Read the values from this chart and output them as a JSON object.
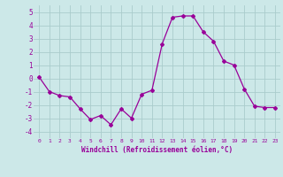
{
  "x": [
    0,
    1,
    2,
    3,
    4,
    5,
    6,
    7,
    8,
    9,
    10,
    11,
    12,
    13,
    14,
    15,
    16,
    17,
    18,
    19,
    20,
    21,
    22,
    23
  ],
  "y": [
    0.1,
    -1.0,
    -1.3,
    -1.4,
    -2.3,
    -3.1,
    -2.8,
    -3.5,
    -2.3,
    -3.0,
    -1.2,
    -0.9,
    2.6,
    4.6,
    4.7,
    4.7,
    3.5,
    2.8,
    1.3,
    1.0,
    -0.8,
    -2.1,
    -2.2,
    -2.2
  ],
  "line_color": "#990099",
  "marker": "D",
  "marker_size": 2,
  "bg_color": "#cce8e8",
  "grid_color": "#aacccc",
  "xlabel": "Windchill (Refroidissement éolien,°C)",
  "xlabel_color": "#990099",
  "tick_color": "#990099",
  "ylim": [
    -4.5,
    5.5
  ],
  "yticks": [
    -4,
    -3,
    -2,
    -1,
    0,
    1,
    2,
    3,
    4,
    5
  ],
  "xticks": [
    0,
    1,
    2,
    3,
    4,
    5,
    6,
    7,
    8,
    9,
    10,
    11,
    12,
    13,
    14,
    15,
    16,
    17,
    18,
    19,
    20,
    21,
    22,
    23
  ]
}
